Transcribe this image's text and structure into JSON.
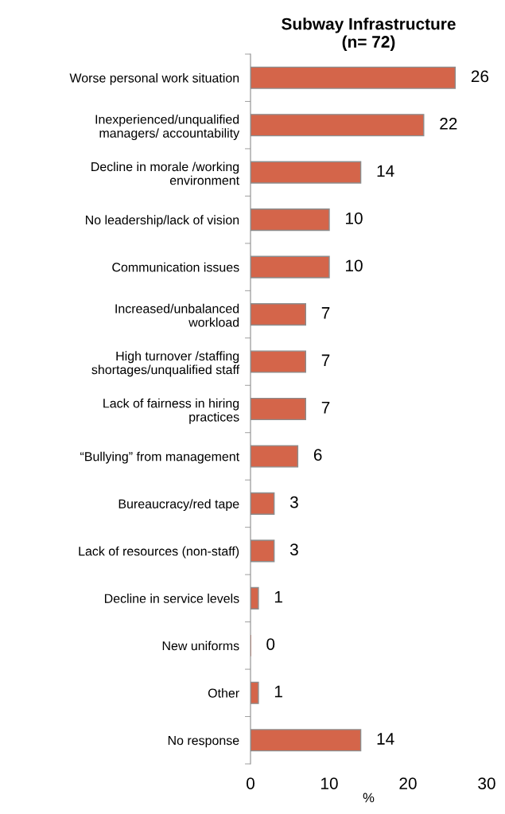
{
  "chart_data": {
    "type": "bar",
    "orientation": "horizontal",
    "title": "Subway Infrastructure\n(n= 72)",
    "xlabel": "%",
    "categories": [
      "Worse personal work situation",
      "Inexperienced/unqualified\nmanagers/ accountability",
      "Decline in morale /working\nenvironment",
      "No leadership/lack of vision",
      "Communication issues",
      "Increased/unbalanced\nworkload",
      "High turnover /staffing\nshortages/unqualified staff",
      "Lack of fairness in hiring\npractices",
      "“Bullying” from management",
      "Bureaucracy/red tape",
      "Lack of resources (non-staff)",
      "Decline in service levels",
      "New uniforms",
      "Other",
      "No response"
    ],
    "values": [
      26,
      22,
      14,
      10,
      10,
      7,
      7,
      7,
      6,
      3,
      3,
      1,
      0,
      1,
      14
    ],
    "color": "#d4654a",
    "data_labels": true,
    "xlim": [
      0,
      30
    ],
    "xticks": [
      0,
      10,
      20,
      30
    ],
    "grid": false,
    "legend": false
  }
}
